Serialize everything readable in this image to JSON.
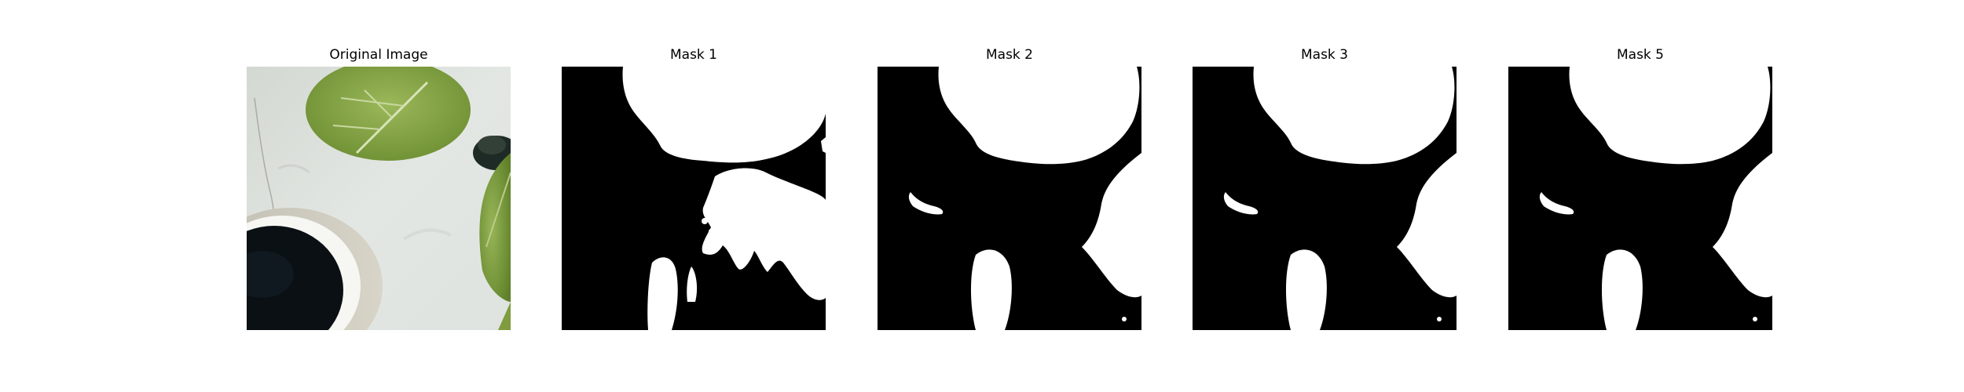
{
  "figure": {
    "panels": [
      {
        "title": "Original Image",
        "kind": "photo"
      },
      {
        "title": "Mask 1",
        "kind": "mask"
      },
      {
        "title": "Mask 2",
        "kind": "mask"
      },
      {
        "title": "Mask 3",
        "kind": "mask"
      },
      {
        "title": "Mask 5",
        "kind": "mask"
      }
    ]
  },
  "colors": {
    "mask_background": "#000000",
    "mask_foreground": "#ffffff",
    "leaf_green": "#8aa64a",
    "table_surface": "#dfe3df",
    "cup_interior": "#0a1014"
  }
}
